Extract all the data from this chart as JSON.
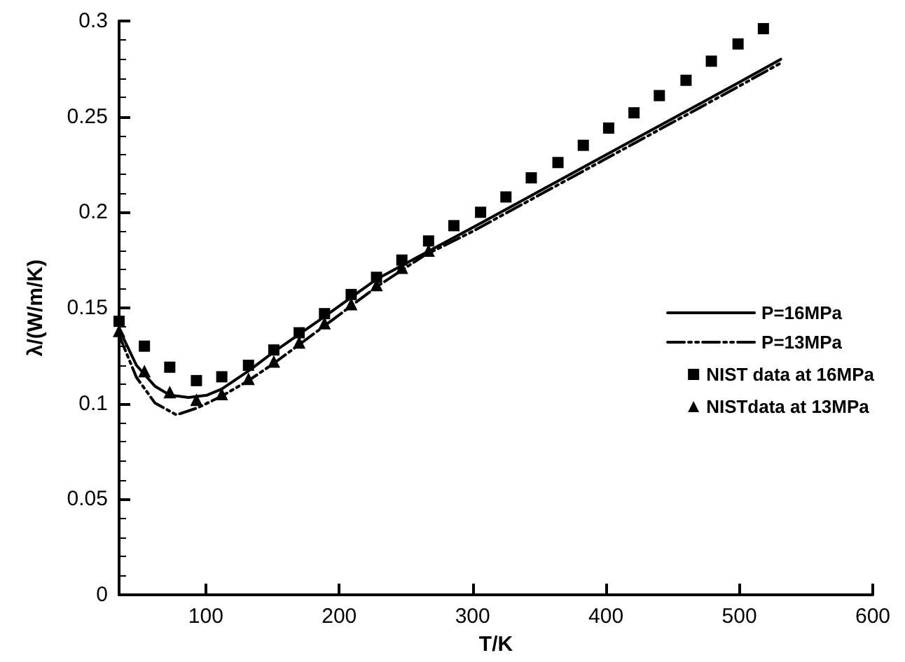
{
  "chart_data": {
    "type": "line",
    "xlabel": "T/K",
    "ylabel": "λ/(W/m/K)",
    "xlim": [
      35,
      600
    ],
    "xticks": [
      100,
      200,
      300,
      400,
      500,
      600
    ],
    "ylim": [
      0,
      0.3
    ],
    "yticks": [
      0,
      0.05,
      0.1,
      0.15,
      0.2,
      0.25,
      0.3
    ],
    "grid": false,
    "legend": "right",
    "series": [
      {
        "name": "P=16MPa",
        "color": "#000000",
        "marker": "none",
        "line_style": "solid",
        "x": [
          35,
          48,
          62,
          73,
          87,
          101,
          112,
          132,
          151,
          189,
          228,
          264,
          300,
          400,
          500,
          531
        ],
        "values": [
          0.139,
          0.12,
          0.109,
          0.1044,
          0.1032,
          0.1044,
          0.1076,
          0.117,
          0.127,
          0.1455,
          0.165,
          0.1785,
          0.192,
          0.23,
          0.268,
          0.28
        ]
      },
      {
        "name": "P=13MPa",
        "color": "#000000",
        "marker": "none",
        "line_style": "dashed",
        "x": [
          35,
          48,
          62,
          78,
          94,
          112,
          132,
          151,
          189,
          228,
          264,
          300,
          400,
          500,
          531
        ],
        "values": [
          0.1357,
          0.1137,
          0.1002,
          0.0941,
          0.0978,
          0.1039,
          0.112,
          0.121,
          0.1406,
          0.161,
          0.1775,
          0.19,
          0.228,
          0.266,
          0.278
        ]
      },
      {
        "name": "NIST data at 16MPa",
        "type": "scatter",
        "color": "#000000",
        "marker": "square",
        "x": [
          35,
          54,
          73,
          93,
          112,
          132,
          151,
          170,
          189,
          209,
          228,
          247,
          267,
          286,
          306,
          325,
          344,
          364,
          383,
          402,
          421,
          440,
          460,
          479,
          499,
          518
        ],
        "values": [
          0.143,
          0.13,
          0.119,
          0.112,
          0.114,
          0.12,
          0.128,
          0.137,
          0.147,
          0.157,
          0.166,
          0.175,
          0.185,
          0.193,
          0.2,
          0.208,
          0.218,
          0.226,
          0.235,
          0.244,
          0.252,
          0.261,
          0.269,
          0.279,
          0.288,
          0.296
        ]
      },
      {
        "name": "NISTdata at 13MPa",
        "type": "scatter",
        "color": "#000000",
        "marker": "triangle",
        "x": [
          35,
          54,
          73,
          93,
          112,
          132,
          151,
          170,
          189,
          209,
          228,
          247,
          267
        ],
        "values": [
          0.138,
          0.117,
          0.106,
          0.102,
          0.105,
          0.113,
          0.122,
          0.132,
          0.142,
          0.152,
          0.162,
          0.171,
          0.18
        ]
      }
    ]
  }
}
